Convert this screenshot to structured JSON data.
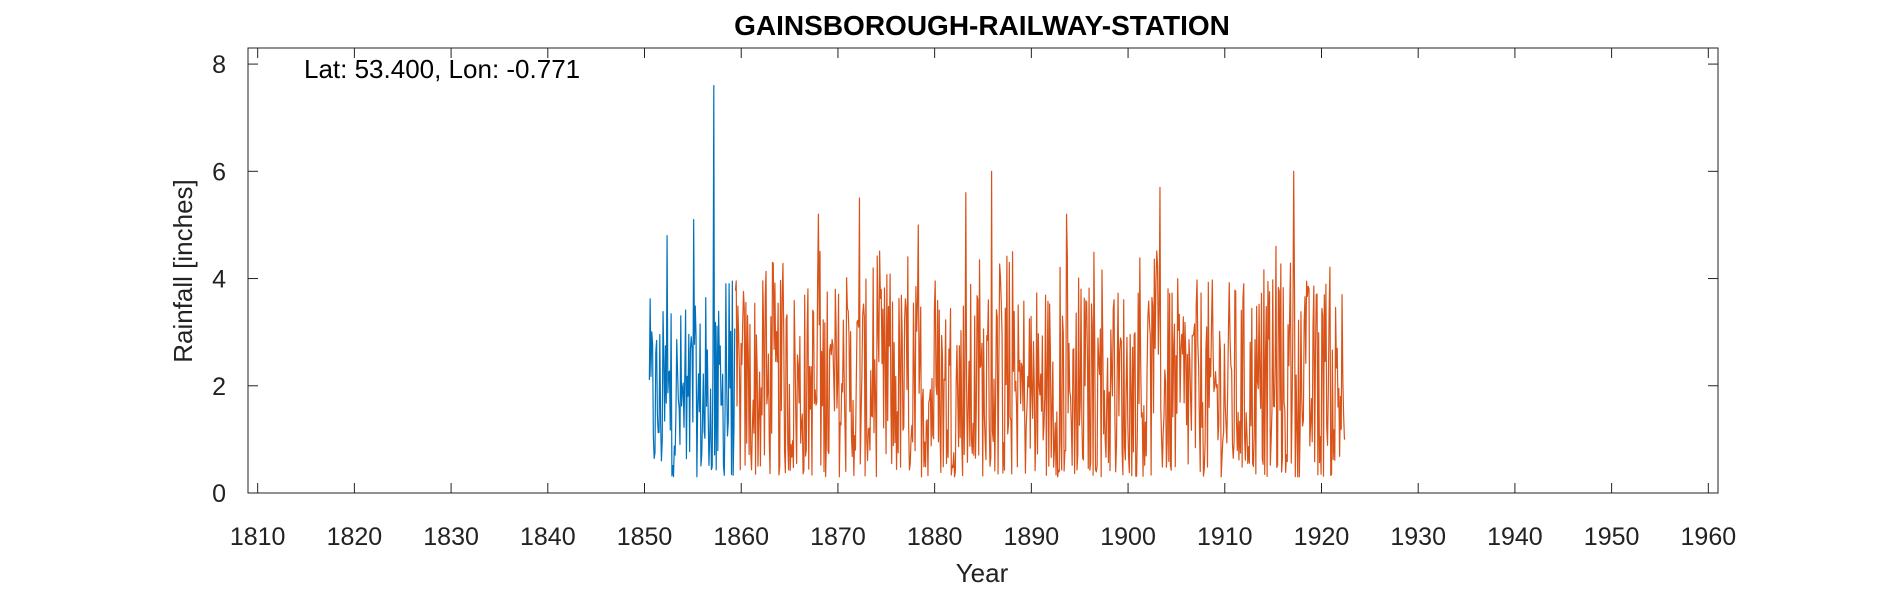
{
  "chart_data": {
    "type": "line",
    "title": "GAINSBOROUGH-RAILWAY-STATION",
    "xlabel": "Year",
    "ylabel": "Rainfall [inches]",
    "annotation": "Lat: 53.400, Lon: -0.771",
    "xlim": [
      1809,
      1961
    ],
    "ylim": [
      0,
      8.3
    ],
    "xticks": [
      1810,
      1820,
      1830,
      1840,
      1850,
      1860,
      1870,
      1880,
      1890,
      1900,
      1910,
      1920,
      1930,
      1940,
      1950,
      1960
    ],
    "yticks": [
      0,
      2,
      4,
      6,
      8
    ],
    "grid": false,
    "legend": "none",
    "series": [
      {
        "color": "#0072BD",
        "x_start": 1850.5,
        "x_end": 1859.4,
        "step": 0.0833,
        "peaks": [
          {
            "x": 1852.3,
            "y": 4.8
          },
          {
            "x": 1855.1,
            "y": 5.1
          },
          {
            "x": 1857.2,
            "y": 7.6
          },
          {
            "x": 1858.4,
            "y": 3.9
          }
        ],
        "typical_range": [
          0.3,
          3.5
        ]
      },
      {
        "color": "#D95319",
        "x_start": 1859.4,
        "x_end": 1922.5,
        "step": 0.0833,
        "peaks": [
          {
            "x": 1868.0,
            "y": 5.2
          },
          {
            "x": 1872.2,
            "y": 5.5
          },
          {
            "x": 1878.3,
            "y": 5.0
          },
          {
            "x": 1883.2,
            "y": 5.6
          },
          {
            "x": 1885.9,
            "y": 6.0
          },
          {
            "x": 1893.6,
            "y": 5.2
          },
          {
            "x": 1903.3,
            "y": 5.7
          },
          {
            "x": 1915.3,
            "y": 4.6
          },
          {
            "x": 1917.1,
            "y": 6.0
          },
          {
            "x": 1922.1,
            "y": 3.7
          }
        ],
        "typical_range": [
          0.3,
          4.0
        ]
      }
    ]
  }
}
